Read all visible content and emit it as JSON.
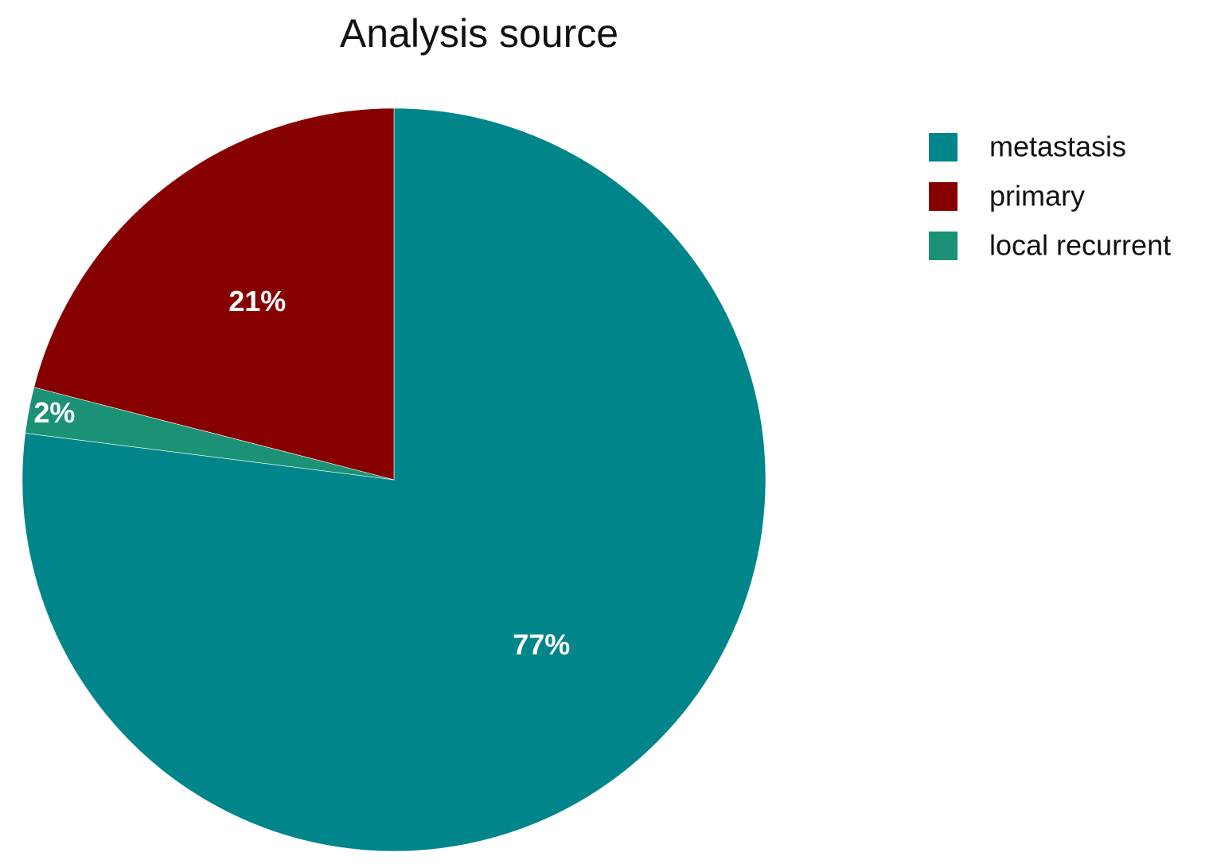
{
  "chart_data": {
    "type": "pie",
    "title": "Analysis source",
    "categories": [
      "metastasis",
      "primary",
      "local recurrent"
    ],
    "values": [
      77,
      21,
      2
    ],
    "value_labels": [
      "77%",
      "21%",
      "2%"
    ],
    "colors": [
      "#00868a",
      "#870000",
      "#1b9176"
    ]
  }
}
